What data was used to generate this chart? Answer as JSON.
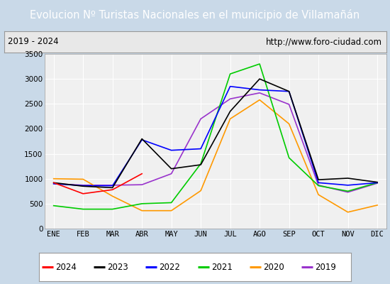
{
  "title": "Evolucion Nº Turistas Nacionales en el municipio de Villamañán",
  "subtitle_left": "2019 - 2024",
  "subtitle_right": "http://www.foro-ciudad.com",
  "months": [
    "ENE",
    "FEB",
    "MAR",
    "ABR",
    "MAY",
    "JUN",
    "JUL",
    "AGO",
    "SEP",
    "OCT",
    "NOV",
    "DIC"
  ],
  "ylim": [
    0,
    3500
  ],
  "yticks": [
    0,
    500,
    1000,
    1500,
    2000,
    2500,
    3000,
    3500
  ],
  "series": {
    "2024": {
      "color": "#ff0000",
      "linewidth": 1.2,
      "values": [
        920,
        700,
        780,
        1100,
        null,
        null,
        null,
        null,
        null,
        null,
        null,
        null
      ]
    },
    "2023": {
      "color": "#000000",
      "linewidth": 1.2,
      "values": [
        920,
        850,
        820,
        1800,
        1200,
        1280,
        2350,
        3000,
        2750,
        980,
        1010,
        930
      ]
    },
    "2022": {
      "color": "#0000ff",
      "linewidth": 1.2,
      "values": [
        900,
        860,
        860,
        1780,
        1570,
        1600,
        2850,
        2780,
        2750,
        920,
        870,
        920
      ]
    },
    "2021": {
      "color": "#00cc00",
      "linewidth": 1.2,
      "values": [
        460,
        390,
        390,
        500,
        520,
        1300,
        3100,
        3300,
        1420,
        860,
        750,
        920
      ]
    },
    "2020": {
      "color": "#ff9900",
      "linewidth": 1.2,
      "values": [
        1000,
        990,
        650,
        360,
        360,
        760,
        2200,
        2580,
        2100,
        680,
        330,
        470
      ]
    },
    "2019": {
      "color": "#9933cc",
      "linewidth": 1.2,
      "values": [
        900,
        870,
        870,
        880,
        1100,
        2200,
        2600,
        2720,
        2490,
        870,
        730,
        910
      ]
    }
  },
  "legend_order": [
    "2024",
    "2023",
    "2022",
    "2021",
    "2020",
    "2019"
  ],
  "title_bg": "#4472c4",
  "title_color": "#ffffff",
  "title_fontsize": 10.5,
  "subtitle_fontsize": 8.5,
  "tick_fontsize": 7.5,
  "plot_bg": "#f0f0f0",
  "outer_bg": "#c9d9e8",
  "grid_color": "#ffffff",
  "border_color": "#999999"
}
